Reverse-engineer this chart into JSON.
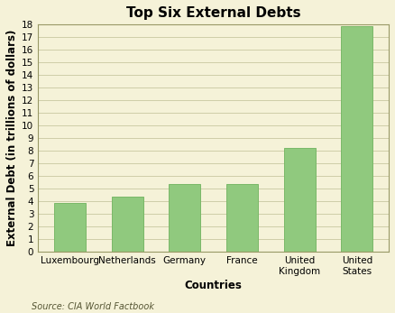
{
  "title": "Top Six External Debts",
  "categories": [
    "Luxembourg",
    "Netherlands",
    "Germany",
    "France",
    "United\nKingdom",
    "United\nStates"
  ],
  "values": [
    3.9,
    4.4,
    5.35,
    5.4,
    8.2,
    17.9
  ],
  "bar_color": "#90c97e",
  "bar_edge_color": "#7ab868",
  "xlabel": "Countries",
  "ylabel": "External Debt (in trillions of dollars)",
  "ylim": [
    0,
    18
  ],
  "yticks": [
    0,
    1,
    2,
    3,
    4,
    5,
    6,
    7,
    8,
    9,
    10,
    11,
    12,
    13,
    14,
    15,
    16,
    17,
    18
  ],
  "background_color": "#f5f2d8",
  "plot_bg_color": "#f5f2d8",
  "grid_color": "#c8c8a0",
  "border_color": "#999966",
  "source_text": "Source: CIA World Factbook",
  "title_fontsize": 11,
  "label_fontsize": 8.5,
  "tick_fontsize": 7.5,
  "source_fontsize": 7
}
